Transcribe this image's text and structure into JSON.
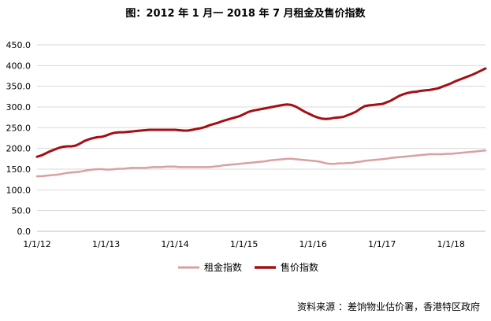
{
  "chart_data": {
    "type": "line",
    "title": "图：2012 年 1 月一 2018 年 7 月租金及售价指数",
    "source": "资料来源 ：差饷物业估价署，香港特区政府",
    "xlabel": "",
    "ylabel": "",
    "ylim": [
      0,
      450
    ],
    "yticks": [
      "0.0",
      "50.0",
      "100.0",
      "150.0",
      "200.0",
      "250.0",
      "300.0",
      "350.0",
      "400.0",
      "450.0"
    ],
    "xticks": [
      "1/1/12",
      "1/1/13",
      "1/1/14",
      "1/1/15",
      "1/1/16",
      "1/1/17",
      "1/1/18"
    ],
    "x_start": "2012-01",
    "x_end": "2018-07",
    "grid": true,
    "legend_position": "bottom",
    "series": [
      {
        "name": "租金指数",
        "color": "#d9a0a2",
        "values": [
          133,
          133,
          134,
          135,
          136,
          137,
          139,
          141,
          142,
          143,
          144,
          146,
          148,
          149,
          150,
          150,
          149,
          149,
          150,
          151,
          151,
          152,
          153,
          153,
          153,
          153,
          154,
          155,
          155,
          155,
          156,
          156,
          156,
          155,
          155,
          155,
          155,
          155,
          155,
          155,
          155,
          156,
          157,
          159,
          160,
          161,
          162,
          163,
          164,
          165,
          166,
          167,
          168,
          169,
          171,
          172,
          173,
          174,
          175,
          175,
          174,
          173,
          172,
          171,
          170,
          169,
          167,
          164,
          163,
          163,
          164,
          164,
          165,
          165,
          167,
          168,
          170,
          171,
          172,
          173,
          174,
          175,
          177,
          178,
          179,
          180,
          181,
          182,
          183,
          184,
          185,
          186,
          186,
          186,
          186,
          187,
          187,
          188,
          189,
          190,
          191,
          192,
          193,
          194,
          195
        ]
      },
      {
        "name": "售价指数",
        "color": "#a40f14",
        "values": [
          180,
          183,
          188,
          193,
          197,
          201,
          204,
          205,
          205,
          207,
          212,
          218,
          222,
          225,
          227,
          228,
          231,
          235,
          238,
          239,
          239,
          240,
          241,
          242,
          243,
          244,
          245,
          245,
          245,
          245,
          245,
          245,
          245,
          244,
          243,
          243,
          245,
          247,
          249,
          252,
          256,
          259,
          262,
          266,
          269,
          272,
          275,
          278,
          283,
          288,
          291,
          293,
          295,
          297,
          299,
          301,
          303,
          305,
          306,
          305,
          301,
          295,
          289,
          284,
          279,
          275,
          272,
          271,
          272,
          274,
          275,
          276,
          280,
          284,
          289,
          296,
          302,
          304,
          305,
          306,
          307,
          311,
          315,
          321,
          327,
          331,
          334,
          336,
          337,
          339,
          340,
          341,
          343,
          345,
          349,
          353,
          357,
          362,
          366,
          370,
          374,
          378,
          383,
          388,
          393
        ]
      }
    ]
  }
}
